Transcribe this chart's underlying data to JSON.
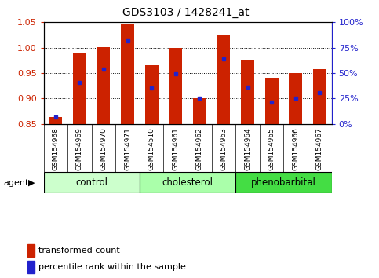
{
  "title": "GDS3103 / 1428241_at",
  "samples": [
    "GSM154968",
    "GSM154969",
    "GSM154970",
    "GSM154971",
    "GSM154510",
    "GSM154961",
    "GSM154962",
    "GSM154963",
    "GSM154964",
    "GSM154965",
    "GSM154966",
    "GSM154967"
  ],
  "bar_bottom": 0.85,
  "bar_tops": [
    0.863,
    0.99,
    1.001,
    1.047,
    0.965,
    1.0,
    0.901,
    1.025,
    0.975,
    0.94,
    0.95,
    0.957
  ],
  "blue_dots": [
    0.863,
    0.932,
    0.957,
    1.013,
    0.921,
    0.948,
    0.9,
    0.977,
    0.922,
    0.893,
    0.9,
    0.911
  ],
  "ylim": [
    0.85,
    1.05
  ],
  "yticks_left": [
    0.85,
    0.9,
    0.95,
    1.0,
    1.05
  ],
  "yticks_right_pct": [
    0,
    25,
    50,
    75,
    100
  ],
  "bar_color": "#cc2200",
  "dot_color": "#2222cc",
  "plot_bg": "#ffffff",
  "bar_width": 0.55,
  "figsize": [
    4.83,
    3.54
  ],
  "dpi": 100,
  "group_boundaries": [
    {
      "label": "control",
      "start": 0,
      "end": 4,
      "color": "#ccffcc"
    },
    {
      "label": "cholesterol",
      "start": 4,
      "end": 8,
      "color": "#aaffaa"
    },
    {
      "label": "phenobarbital",
      "start": 8,
      "end": 12,
      "color": "#44dd44"
    }
  ]
}
